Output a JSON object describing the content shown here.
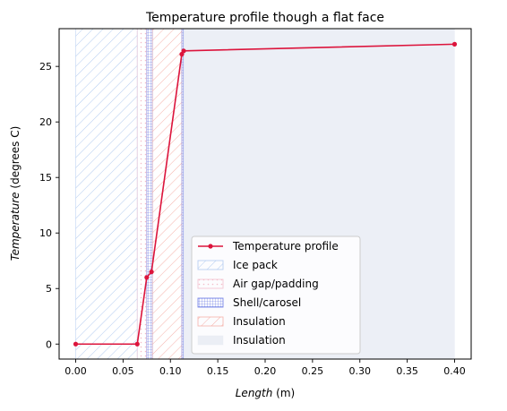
{
  "chart_data": {
    "type": "line",
    "title": "Temperature profile though a flat face",
    "xlabel_italic": "Length",
    "xlabel_rest": " (m)",
    "ylabel_italic": "Temperature",
    "ylabel_rest": " (degrees C)",
    "xlim": [
      -0.0175,
      0.4175
    ],
    "ylim": [
      -1.35,
      28.4
    ],
    "x_ticks": [
      0.0,
      0.05,
      0.1,
      0.15,
      0.2,
      0.25,
      0.3,
      0.35,
      0.4
    ],
    "x_tick_labels": [
      "0.00",
      "0.05",
      "0.10",
      "0.15",
      "0.20",
      "0.25",
      "0.30",
      "0.35",
      "0.40"
    ],
    "y_ticks": [
      0,
      5,
      10,
      15,
      20,
      25
    ],
    "y_tick_labels": [
      "0",
      "5",
      "10",
      "15",
      "20",
      "25"
    ],
    "grid": false,
    "legend_position": "lower-right",
    "series": [
      {
        "name": "Temperature profile",
        "color": "#dc143c",
        "x": [
          0.0,
          0.065,
          0.075,
          0.08,
          0.112,
          0.114,
          0.4
        ],
        "y": [
          0.0,
          0.0,
          6.0,
          6.5,
          26.1,
          26.4,
          27.0
        ]
      }
    ],
    "regions": [
      {
        "name": "Ice pack",
        "x0": 0.0,
        "x1": 0.065,
        "color": "#a9c5ef",
        "pattern": "diagonal"
      },
      {
        "name": "Air gap/padding",
        "x0": 0.065,
        "x1": 0.075,
        "color": "#f3bcc9",
        "pattern": "dots"
      },
      {
        "name": "Shell/carosel",
        "x0": 0.075,
        "x1": 0.081,
        "color": "#5b6ee1",
        "pattern": "grid"
      },
      {
        "name": "Insulation",
        "x0": 0.081,
        "x1": 0.112,
        "color": "#f5a9a0",
        "pattern": "diagonal"
      },
      {
        "name": "Shell/carosel",
        "x0": 0.112,
        "x1": 0.114,
        "color": "#5b6ee1",
        "pattern": "grid"
      },
      {
        "name": "Insulation",
        "x0": 0.114,
        "x1": 0.4,
        "color": "#e9ecf4",
        "pattern": "solid"
      }
    ],
    "legend": [
      {
        "label": "Temperature profile",
        "kind": "line",
        "color": "#dc143c"
      },
      {
        "label": "Ice pack",
        "kind": "region",
        "color": "#a9c5ef",
        "pattern": "diagonal"
      },
      {
        "label": "Air gap/padding",
        "kind": "region",
        "color": "#f3bcc9",
        "pattern": "dots"
      },
      {
        "label": "Shell/carosel",
        "kind": "region",
        "color": "#5b6ee1",
        "pattern": "grid"
      },
      {
        "label": "Insulation",
        "kind": "region",
        "color": "#f5a9a0",
        "pattern": "diagonal"
      },
      {
        "label": "Insulation",
        "kind": "region",
        "color": "#e9ecf4",
        "pattern": "solid"
      }
    ]
  }
}
